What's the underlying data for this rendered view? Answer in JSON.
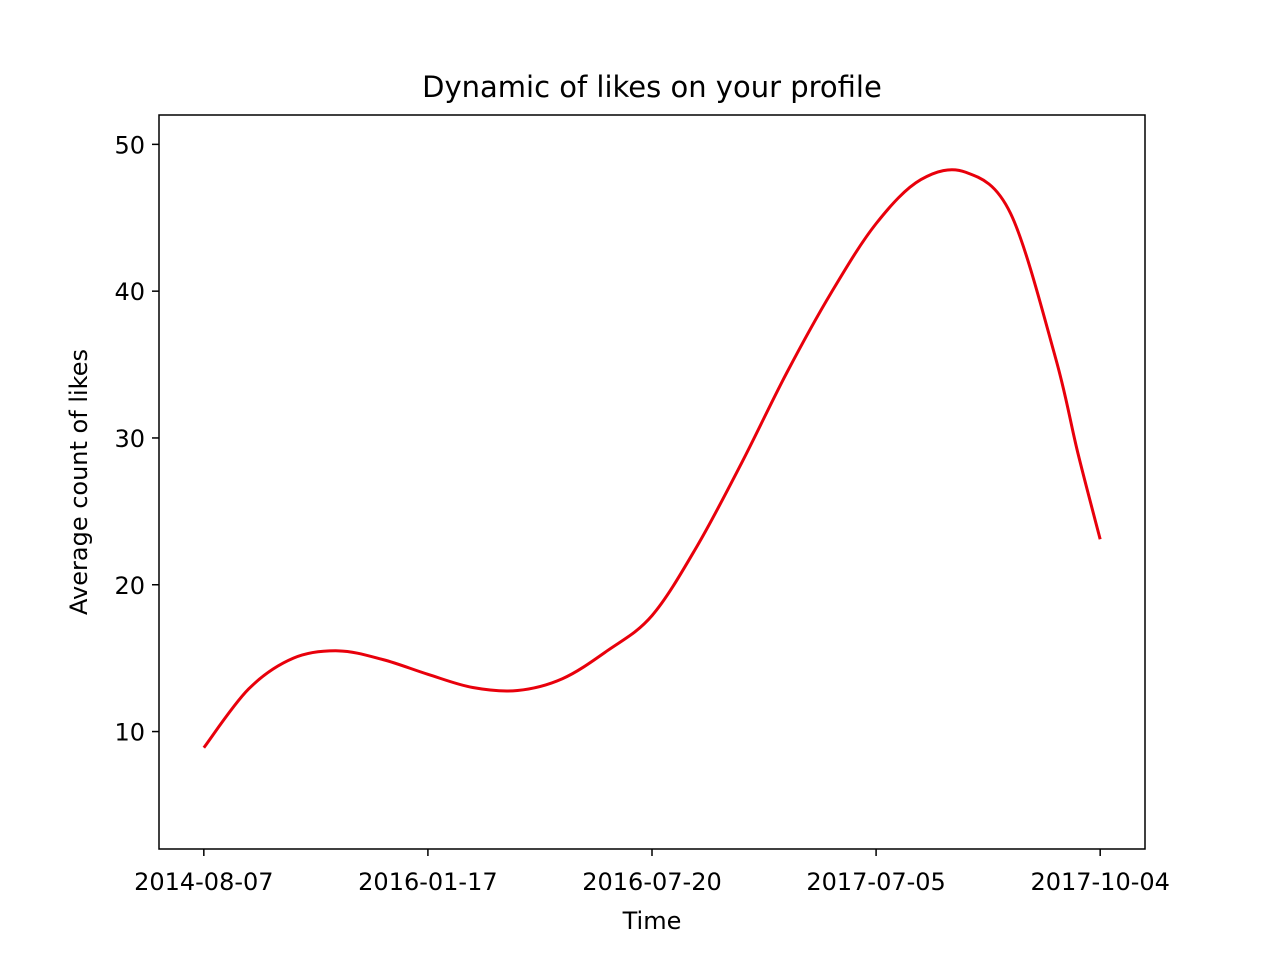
{
  "chart_data": {
    "type": "line",
    "title": "Dynamic of likes on your profile",
    "xlabel": "Time",
    "ylabel": "Average count of likes",
    "x_ticks": [
      "2014-08-07",
      "2016-01-17",
      "2016-07-20",
      "2017-07-05",
      "2017-10-04"
    ],
    "y_ticks": [
      10,
      20,
      30,
      40,
      50
    ],
    "ylim": [
      2,
      52
    ],
    "xlim": [
      -0.2,
      4.2
    ],
    "grid": false,
    "line_color": "#e8000b",
    "series": [
      {
        "x": [
          0,
          0.2,
          0.4,
          0.6,
          0.8,
          1.0,
          1.2,
          1.4,
          1.6,
          1.8,
          2.0,
          2.2,
          2.4,
          2.6,
          2.8,
          3.0,
          3.2,
          3.4,
          3.6,
          3.8,
          3.9,
          4.0
        ],
        "values": [
          8.9,
          12.9,
          15.0,
          15.5,
          14.9,
          13.9,
          13.0,
          12.8,
          13.6,
          15.5,
          17.9,
          22.6,
          28.3,
          34.4,
          39.9,
          44.6,
          47.6,
          48.1,
          45.3,
          35.5,
          29.0,
          23.1
        ]
      }
    ]
  }
}
